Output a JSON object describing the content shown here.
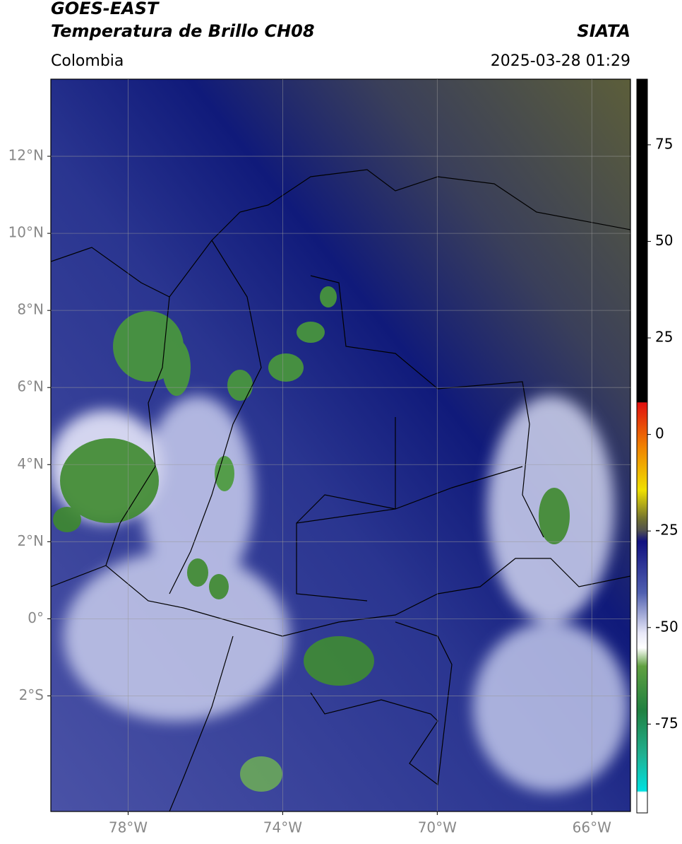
{
  "header": {
    "title": "GOES-EAST",
    "subtitle": "Temperatura de Brillo CH08",
    "source": "SIATA",
    "region": "Colombia",
    "datetime": "2025-03-28 01:29"
  },
  "map": {
    "xlim": [
      -80,
      -65
    ],
    "ylim": [
      -5,
      14
    ],
    "xticks": [
      {
        "value": -78,
        "label": "78°W"
      },
      {
        "value": -74,
        "label": "74°W"
      },
      {
        "value": -70,
        "label": "70°W"
      },
      {
        "value": -66,
        "label": "66°W"
      }
    ],
    "yticks": [
      {
        "value": 12,
        "label": "12°N"
      },
      {
        "value": 10,
        "label": "10°N"
      },
      {
        "value": 8,
        "label": "8°N"
      },
      {
        "value": 6,
        "label": "6°N"
      },
      {
        "value": 4,
        "label": "4°N"
      },
      {
        "value": 2,
        "label": "2°N"
      },
      {
        "value": 0,
        "label": "0°"
      },
      {
        "value": -2,
        "label": "2°S"
      }
    ],
    "grid": true
  },
  "colorbar": {
    "lim": [
      -98,
      92
    ],
    "ticks": [
      75,
      50,
      25,
      0,
      -25,
      -50,
      -75
    ]
  }
}
